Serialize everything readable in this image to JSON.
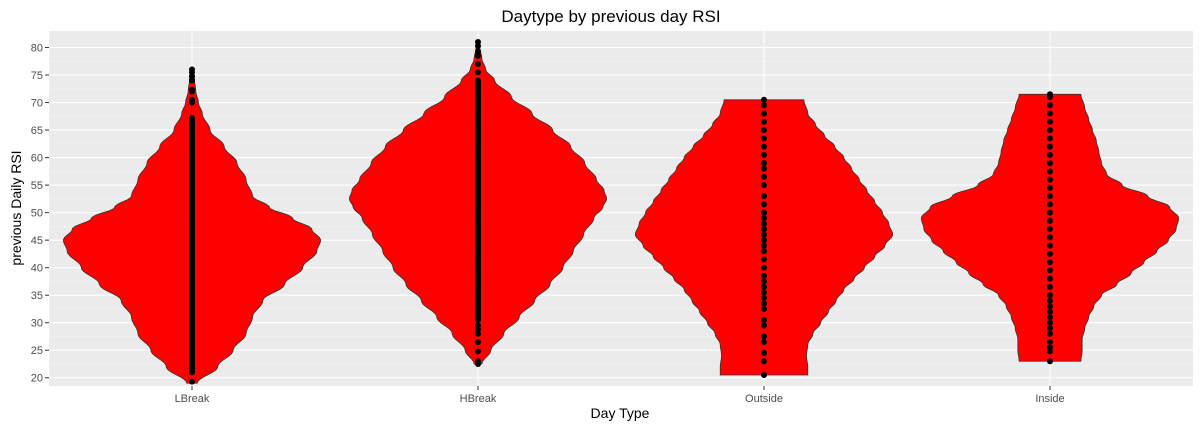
{
  "chart_data": {
    "type": "violin",
    "title": "Daytype by previous day RSI",
    "xlabel": "Day Type",
    "ylabel": "previous Daily RSI",
    "ylim": [
      18.5,
      83
    ],
    "yticks": [
      20,
      25,
      30,
      35,
      40,
      45,
      50,
      55,
      60,
      65,
      70,
      75,
      80
    ],
    "categories": [
      "LBreak",
      "HBreak",
      "Outside",
      "Inside"
    ],
    "fill_color": "#ff0000",
    "point_color": "#000000",
    "panel_background": "#ebebeb",
    "grid": true,
    "series": [
      {
        "category": "LBreak",
        "range": [
          19,
          76
        ],
        "density_profile": [
          [
            19,
            0.04
          ],
          [
            22,
            0.2
          ],
          [
            25,
            0.32
          ],
          [
            28,
            0.42
          ],
          [
            31,
            0.47
          ],
          [
            34,
            0.55
          ],
          [
            37,
            0.72
          ],
          [
            40,
            0.86
          ],
          [
            43,
            0.97
          ],
          [
            45,
            1.0
          ],
          [
            47,
            0.93
          ],
          [
            49,
            0.78
          ],
          [
            51,
            0.6
          ],
          [
            53,
            0.47
          ],
          [
            56,
            0.42
          ],
          [
            59,
            0.35
          ],
          [
            62,
            0.25
          ],
          [
            65,
            0.14
          ],
          [
            68,
            0.08
          ],
          [
            70,
            0.05
          ],
          [
            72,
            0.03
          ],
          [
            74,
            0.02
          ],
          [
            76,
            0.01
          ]
        ],
        "points": [
          19.3,
          21,
          76,
          75.5,
          74.8,
          74,
          72.3,
          72,
          70.5,
          70
        ]
      },
      {
        "category": "HBreak",
        "range": [
          22.5,
          81
        ],
        "density_profile": [
          [
            22.5,
            0.03
          ],
          [
            25,
            0.1
          ],
          [
            28,
            0.2
          ],
          [
            31,
            0.32
          ],
          [
            34,
            0.44
          ],
          [
            37,
            0.56
          ],
          [
            40,
            0.66
          ],
          [
            43,
            0.74
          ],
          [
            46,
            0.82
          ],
          [
            49,
            0.9
          ],
          [
            51,
            0.97
          ],
          [
            52.5,
            1.0
          ],
          [
            54,
            0.98
          ],
          [
            56,
            0.92
          ],
          [
            59,
            0.83
          ],
          [
            62,
            0.72
          ],
          [
            65,
            0.58
          ],
          [
            68,
            0.42
          ],
          [
            71,
            0.26
          ],
          [
            74,
            0.13
          ],
          [
            76,
            0.06
          ],
          [
            78,
            0.03
          ],
          [
            80,
            0.015
          ],
          [
            81,
            0.01
          ]
        ],
        "points": [
          22.5,
          23,
          24.8,
          26.5,
          28,
          28.8,
          29.5,
          30.5,
          31,
          74,
          75.5,
          77,
          78.5,
          79.3,
          80.3,
          81
        ]
      },
      {
        "category": "Outside",
        "range": [
          20.5,
          70.5
        ],
        "density_profile": [
          [
            20.5,
            0.34
          ],
          [
            22,
            0.34
          ],
          [
            24,
            0.33
          ],
          [
            26,
            0.34
          ],
          [
            28,
            0.38
          ],
          [
            30,
            0.44
          ],
          [
            32,
            0.5
          ],
          [
            34,
            0.56
          ],
          [
            36,
            0.62
          ],
          [
            38,
            0.7
          ],
          [
            40,
            0.78
          ],
          [
            42,
            0.86
          ],
          [
            44,
            0.94
          ],
          [
            46,
            1.0
          ],
          [
            48,
            0.97
          ],
          [
            50,
            0.92
          ],
          [
            52,
            0.86
          ],
          [
            54,
            0.8
          ],
          [
            56,
            0.74
          ],
          [
            58,
            0.68
          ],
          [
            60,
            0.62
          ],
          [
            62,
            0.55
          ],
          [
            64,
            0.47
          ],
          [
            66,
            0.4
          ],
          [
            68,
            0.34
          ],
          [
            70.5,
            0.31
          ]
        ],
        "points": [
          20.5,
          23,
          24.5,
          26.5,
          27.5,
          29.5,
          30.5,
          32.5,
          33.5,
          34.5,
          35.5,
          36.5,
          37.5,
          38.5,
          40,
          41.5,
          43,
          44,
          45,
          46,
          47,
          48,
          49,
          50,
          51.5,
          53,
          55,
          56.5,
          58,
          59,
          60.5,
          62,
          63.5,
          65,
          66.5,
          68,
          69.5,
          70.5
        ]
      },
      {
        "category": "Inside",
        "range": [
          23,
          71.5
        ],
        "density_profile": [
          [
            23,
            0.24
          ],
          [
            25,
            0.25
          ],
          [
            27,
            0.25
          ],
          [
            29,
            0.27
          ],
          [
            31,
            0.3
          ],
          [
            33,
            0.34
          ],
          [
            35,
            0.4
          ],
          [
            37,
            0.52
          ],
          [
            39,
            0.63
          ],
          [
            41,
            0.73
          ],
          [
            43,
            0.83
          ],
          [
            45,
            0.92
          ],
          [
            47,
            0.98
          ],
          [
            49,
            1.0
          ],
          [
            51,
            0.93
          ],
          [
            53,
            0.76
          ],
          [
            55,
            0.56
          ],
          [
            57,
            0.44
          ],
          [
            59,
            0.4
          ],
          [
            61,
            0.38
          ],
          [
            63,
            0.36
          ],
          [
            65,
            0.33
          ],
          [
            67,
            0.3
          ],
          [
            69,
            0.27
          ],
          [
            71.5,
            0.24
          ]
        ],
        "points": [
          23,
          24.8,
          25.5,
          26.5,
          28,
          29,
          30,
          31,
          32,
          33,
          34,
          35,
          36.5,
          38,
          39.5,
          41,
          42.5,
          44,
          45.5,
          47,
          48.5,
          50,
          51.5,
          53,
          54.5,
          56,
          57.5,
          59,
          60.5,
          62,
          63.5,
          65,
          66.5,
          68,
          69.5,
          71,
          71.5
        ]
      }
    ]
  }
}
